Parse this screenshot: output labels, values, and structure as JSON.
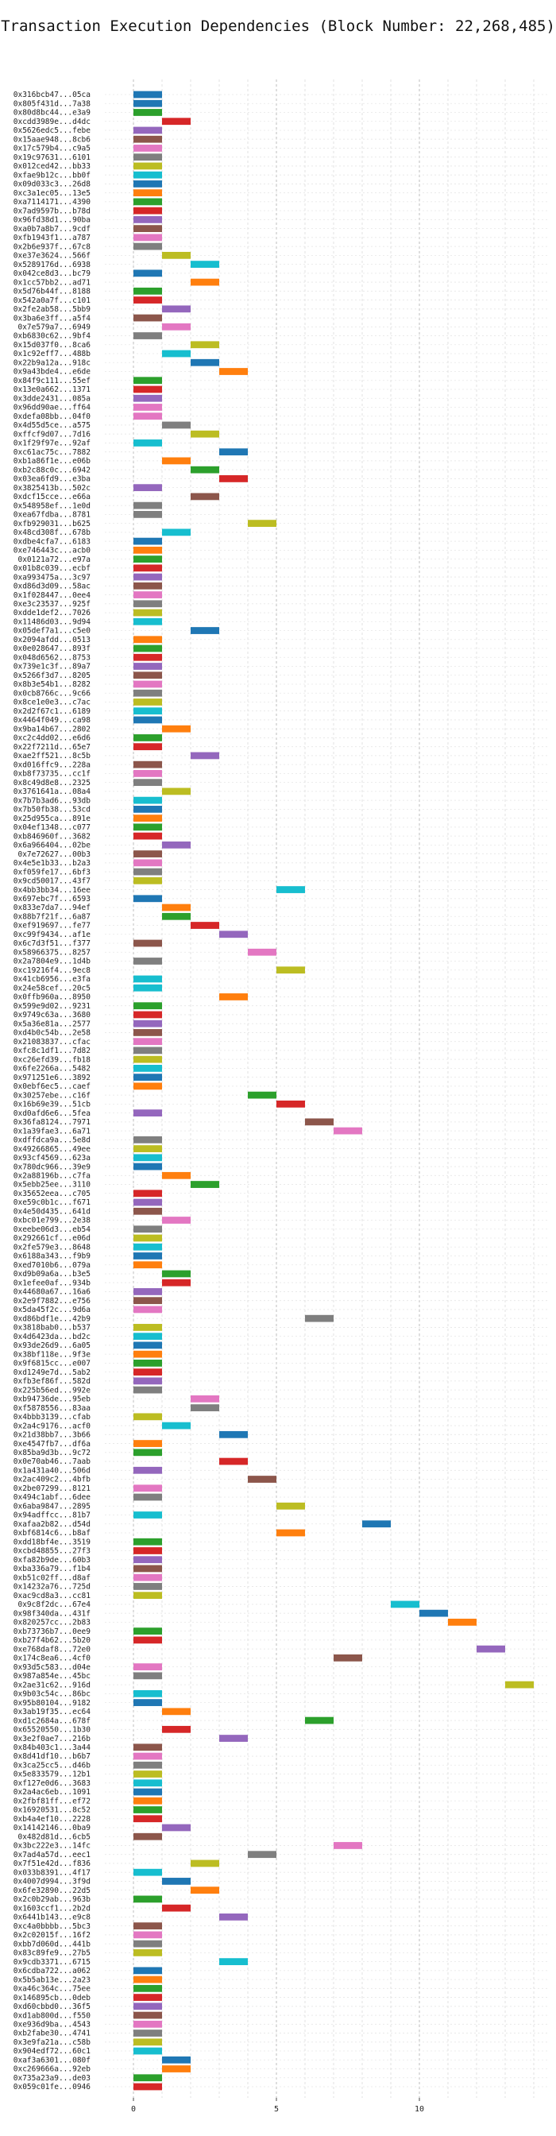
{
  "chart_data": {
    "type": "bar",
    "orientation": "horizontal",
    "title": "Transaction Execution Dependencies (Block Number: 22,268,485)",
    "xlim": [
      -1,
      14.5
    ],
    "xticks": [
      0,
      5,
      10
    ],
    "grid": true,
    "categories": [
      "0x316bcb47...05ca",
      "0x805f431d...7a38",
      "0x80d8bc44...e3a9",
      "0xcdd3989e...d4dc",
      "0x5626edc5...febe",
      "0x15aae948...8cb6",
      "0x17c579b4...c9a5",
      "0x19c97631...6101",
      "0x012ced42...bb33",
      "0xfae9b12c...bb0f",
      "0x09d033c3...26d8",
      "0xc3a1ec05...13e5",
      "0xa7114171...4390",
      "0x7ad9597b...b78d",
      "0x96fd38d1...90ba",
      "0xa0b7a8b7...9cdf",
      "0xfb1943f1...a787",
      "0x2b6e937f...67c8",
      "0xe37e3624...566f",
      "0x5289176d...6938",
      "0x042ce8d3...bc79",
      "0x1cc57bb2...ad71",
      "0x5d76b44f...8188",
      "0x542a0a7f...c101",
      "0x2fe2ab58...5bb9",
      "0x3ba6e3ff...a5f4",
      "0x7e579a7...6949",
      "0xb6830c62...9bf4",
      "0x15d037f0...8ca6",
      "0x1c92eff7...488b",
      "0x22b9a12a...918c",
      "0x9a43bde4...e6de",
      "0x84f9c111...55ef",
      "0x13e0a662...1371",
      "0x3dde2431...085a",
      "0x96dd90ae...ff64",
      "0xdefa08bb...04f0",
      "0x4d55d5ce...a575",
      "0xffcf9d07...7d16",
      "0x1f29f97e...92af",
      "0xc61ac75c...7882",
      "0xb1a86f1e...e06b",
      "0xb2c88c0c...6942",
      "0x03ea6fd9...e3ba",
      "0x3825413b...502c",
      "0xdcf15cce...e66a",
      "0x548958ef...1e0d",
      "0xea67fdba...8781",
      "0xfb929031...b625",
      "0x48cd308f...678b",
      "0xdbe4cfa7...6183",
      "0xe746443c...acb0",
      "0x0121a72...e97a",
      "0x01b8c039...ecbf",
      "0xa993475a...3c97",
      "0xd86d3d09...58ac",
      "0x1f028447...0ee4",
      "0xe3c23537...925f",
      "0xdde1def2...7026",
      "0x11486d03...9d94",
      "0x05def7a1...c5e0",
      "0x2094afdd...0513",
      "0x0e028647...893f",
      "0x048d6562...8753",
      "0x739e1c3f...89a7",
      "0x5266f3d7...8205",
      "0x8b3e54b1...8282",
      "0x0cb8766c...9c66",
      "0x8ce1e0e3...c7ac",
      "0x2d2f67c1...6189",
      "0x4464f049...ca98",
      "0x9ba14b67...2802",
      "0xc2c4dd02...e6d6",
      "0x22f7211d...65e7",
      "0xae2ff521...8c5b",
      "0xd016ffc9...228a",
      "0xb8f73735...cc1f",
      "0x8c49d8e8...2325",
      "0x3761641a...08a4",
      "0x7b7b3ad6...93db",
      "0x7b50fb38...53cd",
      "0x25d955ca...891e",
      "0x04ef1348...c077",
      "0xb846960f...3682",
      "0x6a966404...02be",
      "0x7e72627...00b3",
      "0x4e5e1b33...b2a3",
      "0xf059fe17...6bf3",
      "0x9cd50017...43f7",
      "0x4bb3bb34...16ee",
      "0x697ebc7f...6593",
      "0x833e7da7...94ef",
      "0x88b7f21f...6a87",
      "0xef919697...fe77",
      "0xc99f9434...af1e",
      "0x6c7d3f51...f377",
      "0x58966375...8257",
      "0x2a7804e9...1d4b",
      "0xc19216f4...9ec8",
      "0x41cb6956...e3fa",
      "0x24e58cef...20c5",
      "0x0ffb960a...8950",
      "0x599e9d02...9231",
      "0x9749c63a...3680",
      "0x5a36e81a...2577",
      "0xd4b0c54b...2e58",
      "0x21083837...cfac",
      "0xfc8c1df1...7d82",
      "0xc26efd39...fb18",
      "0x6fe2266a...5482",
      "0x971251e6...3892",
      "0x0ebf6ec5...caef",
      "0x30257ebe...c16f",
      "0x16b69e39...51cb",
      "0xd0afd6e6...5fea",
      "0x36fa8124...7971",
      "0x1a39fae3...6a71",
      "0xdffdca9a...5e8d",
      "0x49266865...49ee",
      "0x93cf4569...623a",
      "0x780dc966...39e9",
      "0x2a88196b...c7fa",
      "0x5ebb25ee...3110",
      "0x35652eea...c705",
      "0xe59c0b1c...f671",
      "0x4e50d435...641d",
      "0xbc01e799...2e38",
      "0xeebe06d3...eb54",
      "0x292661cf...e06d",
      "0x2fe579e3...8648",
      "0x6188a343...f9b9",
      "0xed7010b6...079a",
      "0xd9b09a6a...b3e5",
      "0x1efee0af...934b",
      "0x44680a67...16a6",
      "0x2e9f7882...e756",
      "0x5da45f2c...9d6a",
      "0xd86bdf1e...42b9",
      "0x3818bab0...b537",
      "0x4d6423da...bd2c",
      "0x93de26d9...6a05",
      "0x38bf118e...9f3e",
      "0x9f6815cc...e007",
      "0xd1249e7d...5ab2",
      "0xfb3ef86f...582d",
      "0x225b56ed...992e",
      "0xb94736de...95eb",
      "0xf5878556...83aa",
      "0x4bbb3139...cfab",
      "0x2a4c9176...acf0",
      "0x21d38bb7...3b66",
      "0xe4547fb7...df6a",
      "0x85ba9d3b...9c72",
      "0x0e70ab46...7aab",
      "0x1a431a40...506d",
      "0x2ac409c2...4bfb",
      "0x2be07299...8121",
      "0x494c1abf...6dee",
      "0x6aba9847...2895",
      "0x94adffcc...81b7",
      "0xafaa2b82...d54d",
      "0xbf6814c6...b8af",
      "0xdd18bf4e...3519",
      "0xcbd48855...27f3",
      "0xfa82b9de...60b3",
      "0xba336a79...f1b4",
      "0xb51c02ff...d8af",
      "0x14232a76...725d",
      "0xac9cd8a3...cc81",
      "0x9c8f2dc...67e4",
      "0x98f340da...431f",
      "0x820257cc...2b83",
      "0xb73736b7...0ee9",
      "0xb27f4b62...5b20",
      "0xe768daf8...72e0",
      "0x174c8ea6...4cf0",
      "0x93d5c583...d04e",
      "0x987a854e...45bc",
      "0x2ae31c62...916d",
      "0x9b03c54c...86bc",
      "0x95b80104...9182",
      "0x3ab19f35...ec64",
      "0xd1c2684a...678f",
      "0x65520550...1b30",
      "0x3e2f0ae7...216b",
      "0x84b403c1...3a44",
      "0x8d41df10...b6b7",
      "0x3ca25cc5...d46b",
      "0x5e833579...12b1",
      "0xf127e0d6...3683",
      "0x2a4ac6eb...1091",
      "0x2fbf81ff...ef72",
      "0x16920531...8c52",
      "0xb4a4ef10...2228",
      "0x14142146...0ba9",
      "0x482d81d...6cb5",
      "0x3bc222e3...14fc",
      "0x7ad4a57d...eec1",
      "0x7f51e42d...f836",
      "0x033b8391...4f17",
      "0x4007d994...3f9d",
      "0x6fe32890...22d5",
      "0x2c0b29ab...963b",
      "0x1603ccf1...2b2d",
      "0x6441b143...e9c8",
      "0xc4a0bbbb...5bc3",
      "0x2c02015f...16f2",
      "0xbb7d060d...441b",
      "0x83c89fe9...27b5",
      "0x9cdb3371...6715",
      "0x6cdba722...a062",
      "0x5b5ab13e...2a23",
      "0xa46c364c...75ee",
      "0x146895cb...0deb",
      "0xd60cbbd0...36f5",
      "0xd1ab800d...f550",
      "0xe936d9ba...4543",
      "0xb2fabe30...4741",
      "0x3e9fa21a...c58b",
      "0x904edf72...60c1",
      "0xaf3a6301...080f",
      "0xc269666a...92eb",
      "0x735a23a9...de03",
      "0x059c01fe...0946"
    ],
    "start": [
      0,
      0,
      0,
      1,
      0,
      0,
      0,
      0,
      0,
      0,
      0,
      0,
      0,
      0,
      0,
      0,
      0,
      0,
      1,
      2,
      0,
      2,
      0,
      0,
      1,
      0,
      1,
      0,
      2,
      1,
      2,
      3,
      0,
      0,
      0,
      0,
      0,
      1,
      2,
      0,
      3,
      1,
      2,
      3,
      0,
      2,
      0,
      0,
      4,
      1,
      0,
      0,
      0,
      0,
      0,
      0,
      0,
      0,
      0,
      0,
      2,
      0,
      0,
      0,
      0,
      0,
      0,
      0,
      0,
      0,
      0,
      1,
      0,
      0,
      2,
      0,
      0,
      0,
      1,
      0,
      0,
      0,
      0,
      0,
      1,
      0,
      0,
      0,
      0,
      5,
      0,
      1,
      1,
      2,
      3,
      0,
      4,
      0,
      5,
      0,
      0,
      3,
      0,
      0,
      0,
      0,
      0,
      0,
      0,
      0,
      0,
      0,
      4,
      5,
      0,
      6,
      7,
      0,
      0,
      0,
      0,
      1,
      2,
      0,
      0,
      0,
      1,
      0,
      0,
      0,
      0,
      0,
      1,
      1,
      0,
      0,
      0,
      6,
      0,
      0,
      0,
      0,
      0,
      0,
      0,
      0,
      2,
      2,
      0,
      1,
      3,
      0,
      0,
      3,
      0,
      4,
      0,
      0,
      5,
      0,
      8,
      5,
      0,
      0,
      0,
      0,
      0,
      0,
      0,
      9,
      10,
      11,
      0,
      0,
      12,
      7,
      0,
      0,
      13,
      0,
      0,
      1,
      6,
      1,
      3,
      0,
      0,
      0,
      0,
      0,
      0,
      0,
      0,
      0,
      1,
      0,
      7,
      4,
      2,
      0,
      1,
      2,
      0,
      1,
      3,
      0,
      0,
      0,
      0,
      3,
      0,
      0,
      0,
      0,
      0,
      0,
      0,
      0,
      0,
      0,
      1,
      1,
      0,
      0
    ],
    "color_index": [
      0,
      0,
      2,
      3,
      4,
      5,
      6,
      7,
      8,
      9,
      0,
      1,
      2,
      3,
      4,
      5,
      6,
      7,
      8,
      9,
      0,
      1,
      2,
      3,
      4,
      5,
      6,
      7,
      8,
      9,
      0,
      1,
      2,
      3,
      4,
      6,
      6,
      7,
      8,
      9,
      0,
      1,
      2,
      3,
      4,
      5,
      7,
      7,
      8,
      9,
      0,
      1,
      2,
      3,
      4,
      5,
      6,
      7,
      8,
      9,
      0,
      1,
      2,
      3,
      4,
      5,
      6,
      7,
      8,
      9,
      0,
      1,
      2,
      3,
      4,
      5,
      6,
      7,
      8,
      9,
      0,
      1,
      2,
      3,
      4,
      5,
      6,
      7,
      8,
      9,
      0,
      1,
      2,
      3,
      4,
      5,
      6,
      7,
      8,
      9,
      9,
      1,
      2,
      3,
      4,
      5,
      6,
      7,
      8,
      9,
      0,
      1,
      2,
      3,
      4,
      5,
      6,
      7,
      8,
      9,
      0,
      1,
      2,
      3,
      4,
      5,
      6,
      7,
      8,
      9,
      0,
      1,
      2,
      3,
      4,
      5,
      6,
      7,
      8,
      9,
      0,
      1,
      2,
      3,
      4,
      7,
      6,
      7,
      8,
      9,
      0,
      1,
      2,
      3,
      4,
      5,
      6,
      7,
      8,
      9,
      0,
      1,
      2,
      3,
      4,
      5,
      6,
      7,
      8,
      9,
      0,
      1,
      2,
      3,
      4,
      5,
      6,
      7,
      8,
      9,
      0,
      1,
      2,
      3,
      4,
      5,
      6,
      7,
      8,
      9,
      0,
      1,
      2,
      3,
      4,
      5,
      6,
      7,
      8,
      9,
      0,
      1,
      2,
      3,
      4,
      5,
      6,
      7,
      8,
      9,
      0,
      1,
      2,
      3,
      4,
      5,
      6,
      7,
      8,
      9,
      0,
      1,
      2,
      3
    ],
    "bar_length": 1,
    "colors": [
      "#1f77b4",
      "#ff7f0e",
      "#2ca02c",
      "#d62728",
      "#9467bd",
      "#8c564b",
      "#e377c2",
      "#7f7f7f",
      "#bcbd22",
      "#17becf"
    ]
  }
}
